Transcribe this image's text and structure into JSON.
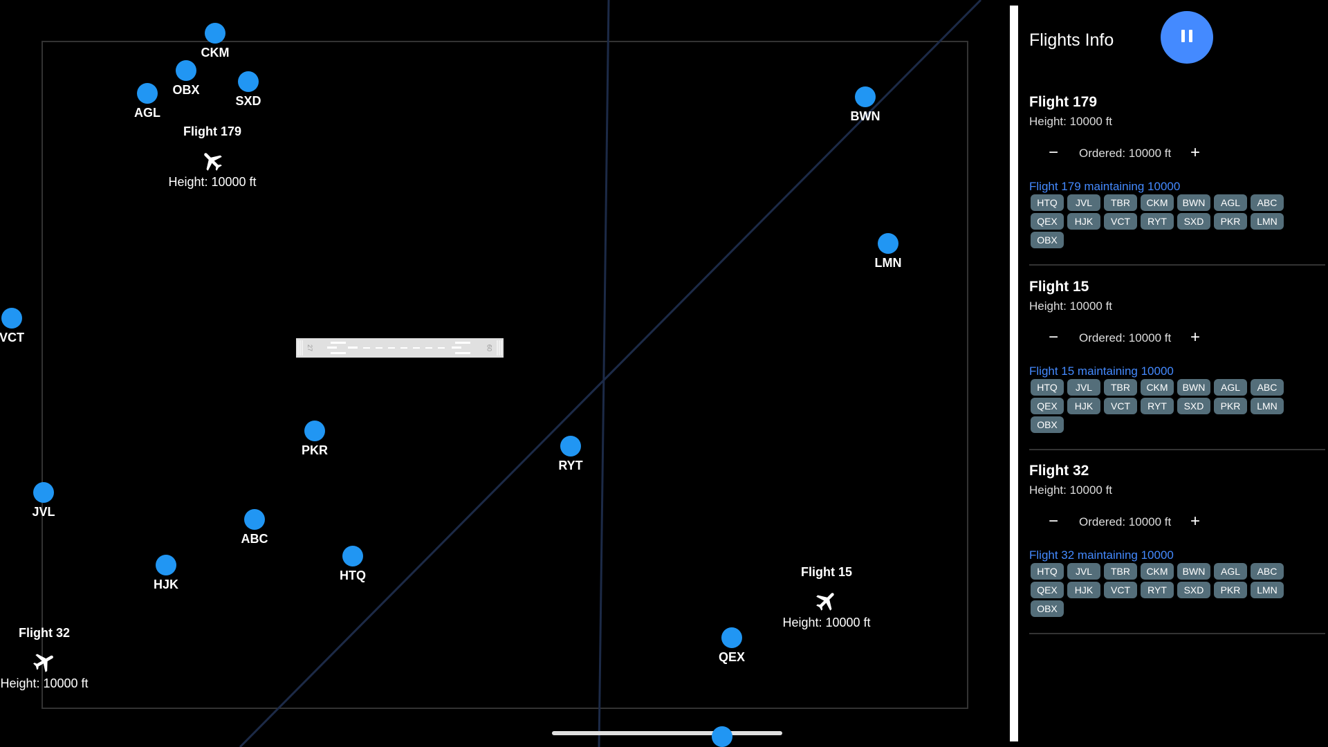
{
  "map": {
    "waypoints": [
      {
        "code": "CKM"
      },
      {
        "code": "OBX"
      },
      {
        "code": "AGL"
      },
      {
        "code": "SXD"
      },
      {
        "code": "BWN"
      },
      {
        "code": "LMN"
      },
      {
        "code": "VCT"
      },
      {
        "code": "PKR"
      },
      {
        "code": "RYT"
      },
      {
        "code": "JVL"
      },
      {
        "code": "ABC"
      },
      {
        "code": "HJK"
      },
      {
        "code": "HTQ"
      },
      {
        "code": "QEX"
      }
    ],
    "flights": [
      {
        "name": "Flight 179",
        "height": "Height: 10000 ft"
      },
      {
        "name": "Flight 15",
        "height": "Height: 10000 ft"
      },
      {
        "name": "Flight 32",
        "height": "Height: 10000 ft"
      }
    ],
    "runway": {
      "left_number": "27",
      "right_number": "09"
    }
  },
  "panel": {
    "title": "Flights Info",
    "pause_icon": "pause-icon",
    "flights": [
      {
        "title": "Flight 179",
        "height": "Height: 10000 ft",
        "ordered": "Ordered: 10000 ft",
        "minus": "−",
        "plus": "+",
        "status": "Flight 179 maintaining 10000",
        "destinations": [
          "HTQ",
          "JVL",
          "TBR",
          "CKM",
          "BWN",
          "AGL",
          "ABC",
          "QEX",
          "HJK",
          "VCT",
          "RYT",
          "SXD",
          "PKR",
          "LMN",
          "OBX"
        ]
      },
      {
        "title": "Flight 15",
        "height": "Height: 10000 ft",
        "ordered": "Ordered: 10000 ft",
        "minus": "−",
        "plus": "+",
        "status": "Flight 15 maintaining 10000",
        "destinations": [
          "HTQ",
          "JVL",
          "TBR",
          "CKM",
          "BWN",
          "AGL",
          "ABC",
          "QEX",
          "HJK",
          "VCT",
          "RYT",
          "SXD",
          "PKR",
          "LMN",
          "OBX"
        ]
      },
      {
        "title": "Flight 32",
        "height": "Height: 10000 ft",
        "ordered": "Ordered: 10000 ft",
        "minus": "−",
        "plus": "+",
        "status": "Flight 32 maintaining 10000",
        "destinations": [
          "HTQ",
          "JVL",
          "TBR",
          "CKM",
          "BWN",
          "AGL",
          "ABC",
          "QEX",
          "HJK",
          "VCT",
          "RYT",
          "SXD",
          "PKR",
          "LMN",
          "OBX"
        ]
      }
    ]
  },
  "colors": {
    "background": "#000000",
    "waypoint": "#2196f3",
    "accent": "#448aff",
    "chip": "#546e7a",
    "route_line": "#1c2a47",
    "boundary": "#333333"
  }
}
